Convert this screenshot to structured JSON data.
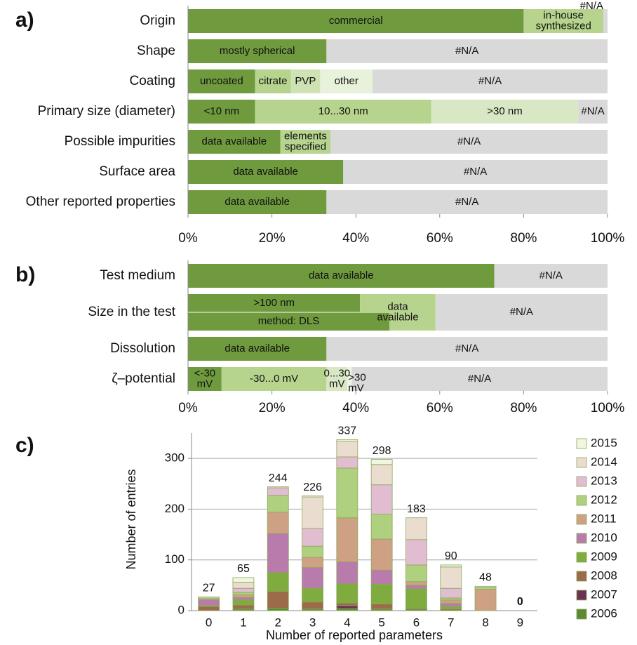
{
  "chart_data": [
    {
      "type": "stacked-bar-h",
      "panel_label": "a)",
      "xlim": [
        0,
        100
      ],
      "xticks": [
        {
          "value": 0,
          "label": "0%"
        },
        {
          "value": 20,
          "label": "20%"
        },
        {
          "value": 40,
          "label": "40%"
        },
        {
          "value": 60,
          "label": "60%"
        },
        {
          "value": 80,
          "label": "80%"
        },
        {
          "value": 100,
          "label": "100%"
        }
      ],
      "rows": [
        {
          "category": "Origin",
          "segments": [
            {
              "label": [
                "commercial"
              ],
              "value": 80,
              "color": "#6f9a3e"
            },
            {
              "label": [
                "in-house",
                "synthesized"
              ],
              "value": 19,
              "color": "#b7d48e"
            },
            {
              "label": [
                "#N/A"
              ],
              "value": 1,
              "color": "#d9d9d9"
            }
          ]
        },
        {
          "category": "Shape",
          "segments": [
            {
              "label": [
                "mostly spherical"
              ],
              "value": 33,
              "color": "#6f9a3e"
            },
            {
              "label": [
                "#N/A"
              ],
              "value": 67,
              "color": "#d9d9d9"
            }
          ]
        },
        {
          "category": "Coating",
          "segments": [
            {
              "label": [
                "uncoated"
              ],
              "value": 16,
              "color": "#6f9a3e"
            },
            {
              "label": [
                "citrate"
              ],
              "value": 8.5,
              "color": "#b7d48e"
            },
            {
              "label": [
                "PVP"
              ],
              "value": 7,
              "color": "#cfe2b4"
            },
            {
              "label": [
                "other"
              ],
              "value": 12.5,
              "color": "#e8f1da"
            },
            {
              "label": [
                "#N/A"
              ],
              "value": 56,
              "color": "#d9d9d9"
            }
          ]
        },
        {
          "category": "Primary size (diameter)",
          "segments": [
            {
              "label": [
                "<10 nm"
              ],
              "value": 16,
              "color": "#6f9a3e"
            },
            {
              "label": [
                "10...30 nm"
              ],
              "value": 42,
              "color": "#b7d48e"
            },
            {
              "label": [
                ">30 nm"
              ],
              "value": 35,
              "color": "#d9e8c4"
            },
            {
              "label": [
                "#N/A"
              ],
              "value": 7,
              "color": "#d9d9d9"
            }
          ]
        },
        {
          "category": "Possible impurities",
          "segments": [
            {
              "label": [
                "data available"
              ],
              "value": 22,
              "color": "#6f9a3e"
            },
            {
              "label": [
                "elements",
                "specified"
              ],
              "value": 12,
              "color": "#b7d48e"
            },
            {
              "label": [
                "#N/A"
              ],
              "value": 66,
              "color": "#d9d9d9"
            }
          ]
        },
        {
          "category": "Surface area",
          "segments": [
            {
              "label": [
                "data available"
              ],
              "value": 37,
              "color": "#6f9a3e"
            },
            {
              "label": [
                "#N/A"
              ],
              "value": 63,
              "color": "#d9d9d9"
            }
          ]
        },
        {
          "category": "Other reported properties",
          "segments": [
            {
              "label": [
                "data available"
              ],
              "value": 33,
              "color": "#6f9a3e"
            },
            {
              "label": [
                "#N/A"
              ],
              "value": 67,
              "color": "#d9d9d9"
            }
          ]
        }
      ]
    },
    {
      "type": "stacked-bar-h",
      "panel_label": "b)",
      "xlim": [
        0,
        100
      ],
      "xticks": [
        {
          "value": 0,
          "label": "0%"
        },
        {
          "value": 20,
          "label": "20%"
        },
        {
          "value": 40,
          "label": "40%"
        },
        {
          "value": 60,
          "label": "60%"
        },
        {
          "value": 80,
          "label": "80%"
        },
        {
          "value": 100,
          "label": "100%"
        }
      ],
      "rows": [
        {
          "category": "Test medium",
          "segments": [
            {
              "label": [
                "data available"
              ],
              "value": 73,
              "color": "#6f9a3e"
            },
            {
              "label": [
                "#N/A"
              ],
              "value": 27,
              "color": "#d9d9d9"
            }
          ]
        },
        {
          "category": "Size in the test",
          "segments": [
            {
              "label": [
                ">100 nm"
              ],
              "value": 41,
              "color": "#6f9a3e"
            },
            {
              "label": [
                "data",
                "available"
              ],
              "value": 18,
              "color": "#b7d48e"
            },
            {
              "label": [
                "#N/A"
              ],
              "value": 41,
              "color": "#d9d9d9"
            }
          ],
          "sub": {
            "label": [
              "method: DLS"
            ],
            "value": 48,
            "color": "#6f9a3e"
          }
        },
        {
          "category": "Dissolution",
          "segments": [
            {
              "label": [
                "data available"
              ],
              "value": 33,
              "color": "#6f9a3e"
            },
            {
              "label": [
                "#N/A"
              ],
              "value": 67,
              "color": "#d9d9d9"
            }
          ]
        },
        {
          "category": "ζ–potential",
          "segments": [
            {
              "label": [
                "<-30",
                "mV"
              ],
              "value": 8,
              "color": "#6f9a3e"
            },
            {
              "label": [
                "-30...0 mV"
              ],
              "value": 25,
              "color": "#b7d48e"
            },
            {
              "label": [
                "0...30",
                "mV"
              ],
              "value": 5,
              "color": "#d9e8c4"
            },
            {
              "label": [
                ">30",
                "mV"
              ],
              "value": 1,
              "color": "#eef5e4"
            },
            {
              "label": [
                "#N/A"
              ],
              "value": 61,
              "color": "#d9d9d9"
            }
          ]
        }
      ]
    },
    {
      "type": "stacked-bar",
      "panel_label": "c)",
      "ylabel": "Number of entries",
      "xlabel": "Number of  reported parameters",
      "categories": [
        "0",
        "1",
        "2",
        "3",
        "4",
        "5",
        "6",
        "7",
        "8",
        "9"
      ],
      "ylim": [
        0,
        350
      ],
      "yticks": [
        0,
        100,
        200,
        300
      ],
      "grid": true,
      "legend": "right",
      "totals": [
        27,
        65,
        244,
        226,
        337,
        298,
        183,
        90,
        48,
        0
      ],
      "series": [
        {
          "name": "2006",
          "color": "#5f8a33",
          "values": [
            0,
            3,
            5,
            3,
            4,
            3,
            3,
            0,
            0,
            0
          ]
        },
        {
          "name": "2007",
          "color": "#6b3353",
          "values": [
            0,
            0,
            0,
            0,
            6,
            0,
            0,
            0,
            0,
            0
          ]
        },
        {
          "name": "2008",
          "color": "#9c6b4a",
          "values": [
            8,
            8,
            33,
            14,
            5,
            10,
            2,
            3,
            0,
            0
          ]
        },
        {
          "name": "2009",
          "color": "#7fab3f",
          "values": [
            2,
            10,
            37,
            27,
            38,
            39,
            38,
            5,
            0,
            0
          ]
        },
        {
          "name": "2010",
          "color": "#b87bac",
          "values": [
            12,
            5,
            77,
            41,
            43,
            28,
            7,
            6,
            0,
            0
          ]
        },
        {
          "name": "2011",
          "color": "#cfa184",
          "values": [
            0,
            5,
            42,
            20,
            87,
            61,
            7,
            7,
            42,
            0
          ]
        },
        {
          "name": "2012",
          "color": "#afd07f",
          "values": [
            3,
            5,
            33,
            22,
            98,
            49,
            33,
            4,
            4,
            0
          ]
        },
        {
          "name": "2013",
          "color": "#e2bdd2",
          "values": [
            0,
            8,
            15,
            35,
            22,
            58,
            50,
            19,
            0,
            0
          ]
        },
        {
          "name": "2014",
          "color": "#eadccf",
          "values": [
            0,
            12,
            2,
            62,
            31,
            40,
            43,
            42,
            0,
            0
          ]
        },
        {
          "name": "2015",
          "color": "#f0f6df",
          "values": [
            2,
            9,
            0,
            2,
            3,
            10,
            0,
            4,
            2,
            0
          ]
        }
      ]
    }
  ]
}
